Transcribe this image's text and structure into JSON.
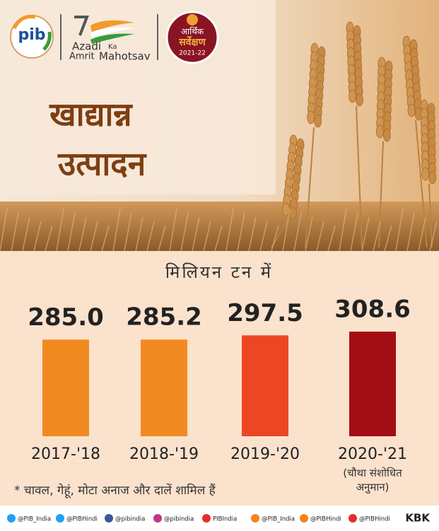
{
  "header": {
    "pib": "pib",
    "azadi": "Azadi",
    "ka": "Ka",
    "amrit": "Amrit",
    "mahotsav": "Mahotsav",
    "survey": "आर्थिक",
    "survey2": "सर्वेक्षण",
    "survey_year": "2021-22"
  },
  "chart_data": {
    "type": "bar",
    "title": [
      "खाद्यान्न",
      "उत्पादन"
    ],
    "subtitle": "मिलियन टन में",
    "categories": [
      "2017-'18",
      "2018-'19",
      "2019-'20",
      "2020-'21"
    ],
    "category_notes": [
      null,
      null,
      null,
      "(चौथा संशोधित\nअनुमान)"
    ],
    "values": [
      285.0,
      285.2,
      297.5,
      308.6
    ],
    "value_labels": [
      "285.0",
      "285.2",
      "297.5",
      "308.6"
    ],
    "colors": [
      "#f28a22",
      "#f28a22",
      "#ec4724",
      "#a30d14"
    ]
  },
  "footnote": "* चावल, गेहूं, मोटा अनाज और दालें शामिल हैं",
  "footer": {
    "handles": [
      "@PIB_India",
      "@PIBHindi",
      "@pibindia",
      "@pibindia",
      "PIBIndia",
      "@PIB_India",
      "@PIBHindi",
      "@PIBHindi"
    ],
    "credit": "KBK"
  }
}
